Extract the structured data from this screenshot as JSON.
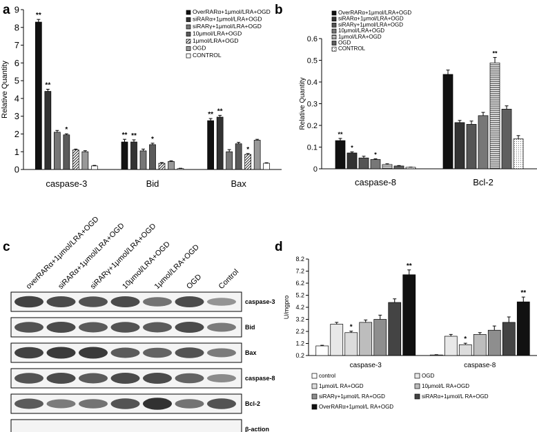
{
  "chart_data": [
    {
      "panel": "a",
      "type": "bar",
      "ylabel": "Relative Quantity",
      "ylim": [
        0,
        9
      ],
      "yticks": [
        0,
        1,
        2,
        3,
        4,
        5,
        6,
        7,
        8,
        9
      ],
      "categories": [
        "caspase-3",
        "Bid",
        "Bax"
      ],
      "legend_position": "top-right",
      "series": [
        {
          "name": "OverRARα+1μmol/LRA+OGD",
          "values": [
            8.3,
            1.55,
            2.75
          ],
          "errors": [
            0.15,
            0.15,
            0.12
          ],
          "sig": [
            "**",
            "**",
            "**"
          ]
        },
        {
          "name": "siRARα+1μmol/LRA+OGD",
          "values": [
            4.4,
            1.55,
            2.95
          ],
          "errors": [
            0.12,
            0.12,
            0.1
          ],
          "sig": [
            "**",
            "**",
            "**"
          ]
        },
        {
          "name": "siRARγ+1μmol/LRA+OGD",
          "values": [
            2.1,
            1.05,
            1.0
          ],
          "errors": [
            0.1,
            0.1,
            0.12
          ],
          "sig": [
            "",
            "",
            ""
          ]
        },
        {
          "name": "10μmol/LRA+OGD",
          "values": [
            1.95,
            1.4,
            1.45
          ],
          "errors": [
            0.06,
            0.08,
            0.08
          ],
          "sig": [
            "*",
            "*",
            ""
          ]
        },
        {
          "name": "1μmol/LRA+OGD",
          "values": [
            1.1,
            0.35,
            0.85
          ],
          "errors": [
            0.05,
            0.04,
            0.05
          ],
          "sig": [
            "",
            "",
            "*"
          ]
        },
        {
          "name": "OGD",
          "values": [
            1.0,
            0.45,
            1.65
          ],
          "errors": [
            0.06,
            0.04,
            0.05
          ],
          "sig": [
            "",
            "",
            ""
          ]
        },
        {
          "name": "CONTROL",
          "values": [
            0.2,
            0.05,
            0.35
          ],
          "errors": [
            0.03,
            0.02,
            0.03
          ],
          "sig": [
            "",
            "",
            ""
          ]
        }
      ]
    },
    {
      "panel": "b",
      "type": "bar",
      "ylabel": "Relative Quantity",
      "ylim": [
        0,
        0.6
      ],
      "yticks": [
        "0",
        "0.1",
        "0.2",
        "0.3",
        "0.4",
        "0.5",
        "0.6"
      ],
      "categories": [
        "caspase-8",
        "Bcl-2"
      ],
      "legend_position": "top-left",
      "series": [
        {
          "name": "OverRARα+1μmol/LRA+OGD",
          "values": [
            0.13,
            0.435
          ],
          "errors": [
            0.01,
            0.02
          ],
          "sig": [
            "**",
            ""
          ]
        },
        {
          "name": "siRARα+1μmol/LRA+OGD",
          "values": [
            0.073,
            0.213
          ],
          "errors": [
            0.005,
            0.01
          ],
          "sig": [
            "*",
            ""
          ]
        },
        {
          "name": "siRARγ+1μmol/LRA+OGD",
          "values": [
            0.05,
            0.205
          ],
          "errors": [
            0.008,
            0.015
          ],
          "sig": [
            "",
            ""
          ]
        },
        {
          "name": "10μmol/LRA+OGD",
          "values": [
            0.043,
            0.245
          ],
          "errors": [
            0.003,
            0.015
          ],
          "sig": [
            "*",
            ""
          ]
        },
        {
          "name": "1μmol/LRA+OGD",
          "values": [
            0.02,
            0.488
          ],
          "errors": [
            0.003,
            0.025
          ],
          "sig": [
            "",
            "**"
          ]
        },
        {
          "name": "OGD",
          "values": [
            0.013,
            0.275
          ],
          "errors": [
            0.002,
            0.015
          ],
          "sig": [
            "",
            ""
          ]
        },
        {
          "name": "CONTROL",
          "values": [
            0.007,
            0.138
          ],
          "errors": [
            0.001,
            0.015
          ],
          "sig": [
            "",
            ""
          ]
        }
      ]
    },
    {
      "panel": "d",
      "type": "bar",
      "ylabel": "U/mgpro",
      "ylim": [
        0.2,
        8.2
      ],
      "yticks": [
        "0.2",
        "1.2",
        "2.2",
        "3.2",
        "4.2",
        "5.2",
        "6.2",
        "7.2",
        "8.2"
      ],
      "categories": [
        "caspase-3",
        "caspase-8"
      ],
      "legend_position": "bottom",
      "series": [
        {
          "name": "control",
          "values": [
            1.0,
            0.25
          ],
          "errors": [
            0.05,
            0.02
          ],
          "sig": [
            "",
            ""
          ]
        },
        {
          "name": "OGD",
          "values": [
            2.8,
            1.8
          ],
          "errors": [
            0.15,
            0.15
          ],
          "sig": [
            "",
            ""
          ]
        },
        {
          "name": "1μmol/L RA+OGD",
          "values": [
            2.1,
            1.1
          ],
          "errors": [
            0.12,
            0.12
          ],
          "sig": [
            "*",
            "*"
          ]
        },
        {
          "name": "10μmol/L RA+OGD",
          "values": [
            2.95,
            1.95
          ],
          "errors": [
            0.2,
            0.15
          ],
          "sig": [
            "",
            ""
          ]
        },
        {
          "name": "siRARγ+1μmol/L RA+OGD",
          "values": [
            3.2,
            2.3
          ],
          "errors": [
            0.35,
            0.35
          ],
          "sig": [
            "",
            ""
          ]
        },
        {
          "name": "siRARα+1μmol/L RA+OGD",
          "values": [
            4.6,
            2.95
          ],
          "errors": [
            0.3,
            0.45
          ],
          "sig": [
            "",
            ""
          ]
        },
        {
          "name": "OverRARα+1μmol/L RA+OGD",
          "values": [
            6.9,
            4.65
          ],
          "errors": [
            0.4,
            0.4
          ],
          "sig": [
            "**",
            "**"
          ]
        }
      ]
    }
  ],
  "panels": {
    "a": "a",
    "b": "b",
    "c": "c",
    "d": "d"
  },
  "blot": {
    "lanes": [
      "overRARα+1μmol/LRA+OGD",
      "siRARα+1μmol/LRA+OGD",
      "siRARγ+1μmol/LRA+OGD",
      "10μmol/LRA+OGD",
      "1μmol/LRA+OGD",
      "OGD",
      "Control"
    ],
    "proteins": [
      "caspase-3",
      "Bid",
      "Bax",
      "caspase-8",
      "Bcl-2",
      "β-action"
    ],
    "band_intensity": [
      [
        0.85,
        0.8,
        0.75,
        0.8,
        0.55,
        0.8,
        0.35
      ],
      [
        0.75,
        0.8,
        0.7,
        0.75,
        0.7,
        0.8,
        0.5
      ],
      [
        0.85,
        0.9,
        0.9,
        0.7,
        0.65,
        0.75,
        0.5
      ],
      [
        0.75,
        0.8,
        0.7,
        0.8,
        0.8,
        0.65,
        0.4
      ],
      [
        0.7,
        0.5,
        0.55,
        0.75,
        0.95,
        0.55,
        0.75
      ],
      [
        0.0,
        0.0,
        0.0,
        0.0,
        0.0,
        0.0,
        0.0
      ]
    ]
  }
}
